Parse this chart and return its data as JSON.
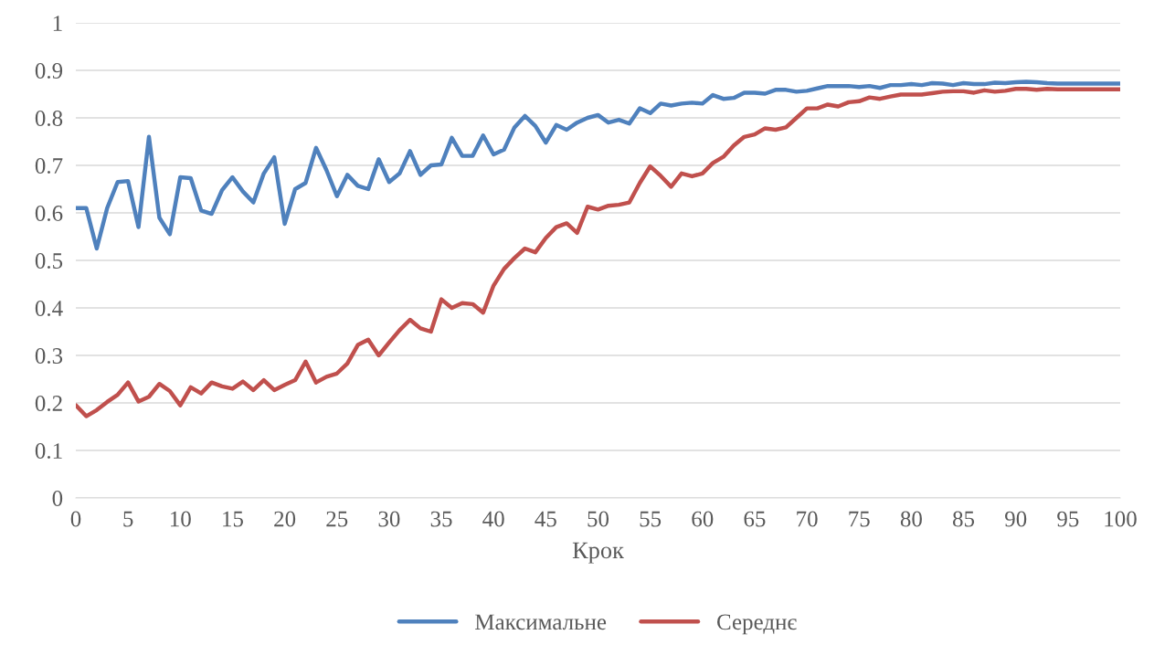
{
  "chart_data": {
    "type": "line",
    "xlabel": "Крок",
    "x": [
      0,
      1,
      2,
      3,
      4,
      5,
      6,
      7,
      8,
      9,
      10,
      11,
      12,
      13,
      14,
      15,
      16,
      17,
      18,
      19,
      20,
      21,
      22,
      23,
      24,
      25,
      26,
      27,
      28,
      29,
      30,
      31,
      32,
      33,
      34,
      35,
      36,
      37,
      38,
      39,
      40,
      41,
      42,
      43,
      44,
      45,
      46,
      47,
      48,
      49,
      50,
      51,
      52,
      53,
      54,
      55,
      56,
      57,
      58,
      59,
      60,
      61,
      62,
      63,
      64,
      65,
      66,
      67,
      68,
      69,
      70,
      71,
      72,
      73,
      74,
      75,
      76,
      77,
      78,
      79,
      80,
      81,
      82,
      83,
      84,
      85,
      86,
      87,
      88,
      89,
      90,
      91,
      92,
      93,
      94,
      95,
      96,
      97,
      98,
      99,
      100
    ],
    "series": [
      {
        "name": "Максимальне",
        "color": "#4f81bd",
        "values": [
          0.61,
          0.61,
          0.525,
          0.61,
          0.665,
          0.667,
          0.57,
          0.76,
          0.59,
          0.555,
          0.675,
          0.673,
          0.605,
          0.598,
          0.648,
          0.675,
          0.645,
          0.622,
          0.683,
          0.717,
          0.577,
          0.65,
          0.663,
          0.737,
          0.69,
          0.635,
          0.68,
          0.657,
          0.65,
          0.713,
          0.665,
          0.683,
          0.73,
          0.68,
          0.7,
          0.702,
          0.758,
          0.72,
          0.72,
          0.763,
          0.723,
          0.733,
          0.78,
          0.804,
          0.783,
          0.748,
          0.785,
          0.775,
          0.79,
          0.8,
          0.806,
          0.79,
          0.796,
          0.788,
          0.82,
          0.81,
          0.83,
          0.826,
          0.83,
          0.832,
          0.83,
          0.848,
          0.84,
          0.842,
          0.853,
          0.853,
          0.851,
          0.859,
          0.859,
          0.855,
          0.857,
          0.862,
          0.867,
          0.867,
          0.867,
          0.865,
          0.867,
          0.863,
          0.869,
          0.869,
          0.871,
          0.869,
          0.873,
          0.872,
          0.869,
          0.873,
          0.871,
          0.871,
          0.874,
          0.873,
          0.875,
          0.876,
          0.875,
          0.873,
          0.872,
          0.872,
          0.872,
          0.872,
          0.872,
          0.872,
          0.872
        ]
      },
      {
        "name": "Середнє",
        "color": "#c0504d",
        "values": [
          0.195,
          0.172,
          0.185,
          0.202,
          0.217,
          0.243,
          0.203,
          0.213,
          0.24,
          0.225,
          0.195,
          0.233,
          0.22,
          0.243,
          0.235,
          0.23,
          0.245,
          0.227,
          0.248,
          0.227,
          0.238,
          0.248,
          0.287,
          0.243,
          0.255,
          0.262,
          0.283,
          0.322,
          0.333,
          0.3,
          0.327,
          0.353,
          0.375,
          0.357,
          0.35,
          0.418,
          0.4,
          0.41,
          0.408,
          0.39,
          0.447,
          0.482,
          0.505,
          0.525,
          0.517,
          0.547,
          0.57,
          0.578,
          0.558,
          0.613,
          0.607,
          0.615,
          0.617,
          0.622,
          0.663,
          0.698,
          0.678,
          0.655,
          0.683,
          0.677,
          0.683,
          0.705,
          0.718,
          0.742,
          0.76,
          0.765,
          0.778,
          0.775,
          0.78,
          0.8,
          0.82,
          0.82,
          0.828,
          0.824,
          0.833,
          0.835,
          0.843,
          0.84,
          0.845,
          0.849,
          0.849,
          0.849,
          0.852,
          0.855,
          0.856,
          0.856,
          0.853,
          0.858,
          0.855,
          0.857,
          0.861,
          0.861,
          0.859,
          0.861,
          0.86,
          0.86,
          0.86,
          0.86,
          0.86,
          0.86,
          0.86
        ]
      }
    ],
    "xlim": [
      0,
      100
    ],
    "xticks": [
      0,
      5,
      10,
      15,
      20,
      25,
      30,
      35,
      40,
      45,
      50,
      55,
      60,
      65,
      70,
      75,
      80,
      85,
      90,
      95,
      100
    ],
    "ylim": [
      0,
      1
    ],
    "yticks": [
      0,
      0.1,
      0.2,
      0.3,
      0.4,
      0.5,
      0.6,
      0.7,
      0.8,
      0.9,
      1
    ],
    "grid": "y",
    "legend": "bottom",
    "marker": "none",
    "line_style": "solid"
  }
}
